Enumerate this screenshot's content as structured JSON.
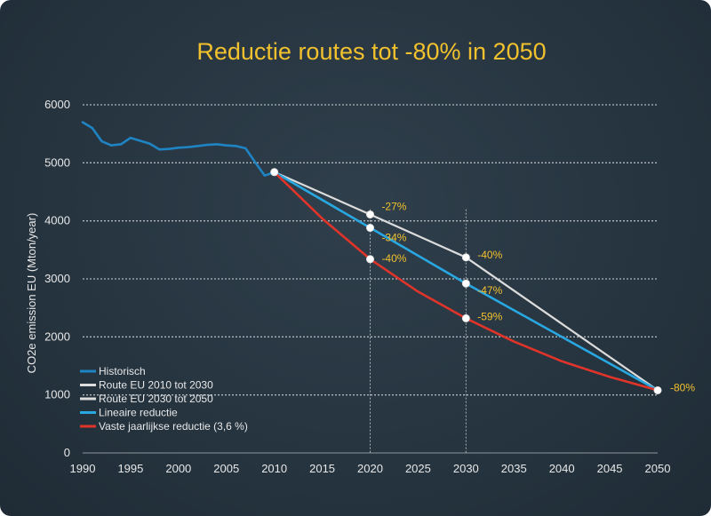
{
  "chart_data": {
    "type": "line",
    "title": "Reductie routes tot -80% in 2050",
    "xlabel": "",
    "ylabel": "CO2e emission EU (Mton/year)",
    "xlim": [
      1990,
      2050
    ],
    "ylim": [
      0,
      6000
    ],
    "x_ticks": [
      "1990",
      "1995",
      "2000",
      "2005",
      "2010",
      "2015",
      "2020",
      "2025",
      "2030",
      "2035",
      "2040",
      "2045",
      "2050"
    ],
    "x_tick_values": [
      1990,
      1995,
      2000,
      2005,
      2010,
      2015,
      2020,
      2025,
      2030,
      2035,
      2040,
      2045,
      2050
    ],
    "y_ticks": [
      "0",
      "1000",
      "2000",
      "3000",
      "4000",
      "5000",
      "6000"
    ],
    "y_tick_values": [
      0,
      1000,
      2000,
      3000,
      4000,
      5000,
      6000
    ],
    "grid": true,
    "legend_position": "bottom-left",
    "colors": {
      "background": "#27343f",
      "title": "#f2c12e",
      "grid": "#c9ced3",
      "annotation": "#f2c12e"
    },
    "series": [
      {
        "name": "Historisch",
        "color": "#1f84c4",
        "x": [
          1990,
          1991,
          1992,
          1993,
          1994,
          1995,
          1996,
          1997,
          1998,
          1999,
          2000,
          2001,
          2002,
          2003,
          2004,
          2005,
          2006,
          2007,
          2008,
          2009,
          2010
        ],
        "values": [
          5700,
          5600,
          5370,
          5300,
          5320,
          5430,
          5380,
          5330,
          5230,
          5240,
          5260,
          5270,
          5290,
          5310,
          5320,
          5300,
          5290,
          5250,
          5010,
          4780,
          4840
        ]
      },
      {
        "name": "Route EU 2010 tot 2030",
        "color": "#dcdcdc",
        "x": [
          2010,
          2020,
          2030
        ],
        "values": [
          4840,
          4110,
          3370
        ]
      },
      {
        "name": "Route EU 2030 tot 2050",
        "color": "#dcdcdc",
        "x": [
          2030,
          2050
        ],
        "values": [
          3370,
          1080
        ]
      },
      {
        "name": "Lineaire reductie",
        "color": "#29a7e1",
        "x": [
          2010,
          2020,
          2030,
          2050
        ],
        "values": [
          4840,
          3880,
          2920,
          1080
        ]
      },
      {
        "name": "Vaste jaarlijkse reductie (3,6 %)",
        "color": "#e0342a",
        "x": [
          2010,
          2015,
          2020,
          2025,
          2030,
          2035,
          2040,
          2045,
          2050
        ],
        "values": [
          4840,
          4040,
          3340,
          2780,
          2320,
          1920,
          1580,
          1310,
          1080
        ]
      }
    ],
    "markers": [
      {
        "x": 2010,
        "y": 4840
      },
      {
        "x": 2020,
        "y": 4110
      },
      {
        "x": 2020,
        "y": 3880
      },
      {
        "x": 2020,
        "y": 3340
      },
      {
        "x": 2030,
        "y": 3370
      },
      {
        "x": 2030,
        "y": 2920
      },
      {
        "x": 2030,
        "y": 2320
      },
      {
        "x": 2050,
        "y": 1080
      }
    ],
    "vertical_guides": [
      2020,
      2030
    ],
    "annotations": [
      {
        "text": "-27%",
        "x": 2021.2,
        "y": 4190
      },
      {
        "text": "-34%",
        "x": 2021.2,
        "y": 3650
      },
      {
        "text": "-40%",
        "x": 2021.2,
        "y": 3290
      },
      {
        "text": "-40%",
        "x": 2031.2,
        "y": 3350
      },
      {
        "text": "-47%",
        "x": 2031.2,
        "y": 2740
      },
      {
        "text": "-59%",
        "x": 2031.2,
        "y": 2290
      },
      {
        "text": "-80%",
        "x": 2051.3,
        "y": 1060
      }
    ]
  }
}
